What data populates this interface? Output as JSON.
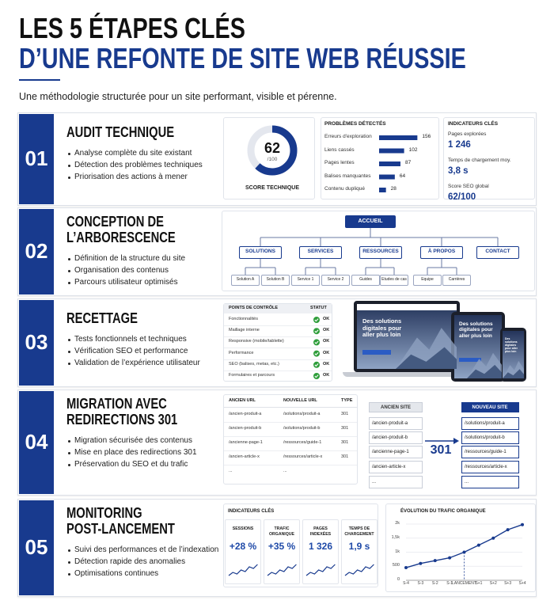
{
  "header": {
    "title_line1": "LES 5 ÉTAPES CLÉS",
    "title_line2": "D’UNE REFONTE DE SITE WEB RÉUSSIE",
    "subtitle": "Une méthodologie structurée pour un site performant, visible et pérenne."
  },
  "steps": [
    {
      "number": "01",
      "title": [
        "AUDIT TECHNIQUE"
      ],
      "bullets": [
        "Analyse complète du site existant",
        "Détection des problèmes techniques",
        "Priorisation des actions à mener"
      ],
      "score": {
        "value": 62,
        "max": {
          "value": 100,
          "label": "/100"
        },
        "label": "SCORE TECHNIQUE"
      },
      "problems": {
        "title": "PROBLÈMES DÉTECTÉS",
        "items": [
          {
            "label": "Erreurs d'exploration",
            "value": 156
          },
          {
            "label": "Liens cassés",
            "value": 102
          },
          {
            "label": "Pages lentes",
            "value": 87
          },
          {
            "label": "Balises manquantes",
            "value": 64
          },
          {
            "label": "Contenu dupliqué",
            "value": 28
          }
        ]
      },
      "indicators": {
        "title": "INDICATEURS CLÉS",
        "items": [
          {
            "label": "Pages explorées",
            "value": "1 246"
          },
          {
            "label": "Temps de chargement moy.",
            "value": "3,8 s"
          },
          {
            "label": "Score SEO global",
            "value": "62/100"
          }
        ]
      }
    },
    {
      "number": "02",
      "title": [
        "CONCEPTION DE",
        "L’ARBORESCENCE"
      ],
      "bullets": [
        "Définition de la structure du site",
        "Organisation des contenus",
        "Parcours utilisateur optimisés"
      ],
      "tree": {
        "root": "ACCUEIL",
        "branches": [
          {
            "label": "SOLUTIONS",
            "children": [
              "Solution A",
              "Solution B"
            ]
          },
          {
            "label": "SERVICES",
            "children": [
              "Service 1",
              "Service 2"
            ]
          },
          {
            "label": "RESSOURCES",
            "children": [
              "Guides",
              "Etudes de cas"
            ]
          },
          {
            "label": "À PROPOS",
            "children": [
              "Equipe",
              "Carrières"
            ]
          },
          {
            "label": "CONTACT",
            "children": []
          }
        ]
      }
    },
    {
      "number": "03",
      "title": [
        "RECETTAGE"
      ],
      "bullets": [
        "Tests fonctionnels et techniques",
        "Vérification SEO et performance",
        "Validation de l’expérience utilisateur"
      ],
      "checklist": {
        "headers": [
          "POINTS DE CONTRÔLE",
          "STATUT"
        ],
        "rows": [
          [
            "Fonctionnalités",
            "OK"
          ],
          [
            "Maillage interne",
            "OK"
          ],
          [
            "Responsive (mobile/tablette)",
            "OK"
          ],
          [
            "Performance",
            "OK"
          ],
          [
            "SEO (balises, metas, etc.)",
            "OK"
          ],
          [
            "Formulaires et parcours",
            "OK"
          ]
        ]
      },
      "mockup": {
        "headline": "Des solutions digitales pour aller plus loin"
      }
    },
    {
      "number": "04",
      "title": [
        "MIGRATION AVEC",
        "REDIRECTIONS 301"
      ],
      "bullets": [
        "Migration sécurisée des contenus",
        "Mise en place des redirections 301",
        "Préservation du SEO et du trafic"
      ],
      "redirects": {
        "headers": [
          "ANCIEN URL",
          "NOUVELLE URL",
          "TYPE"
        ],
        "rows": [
          [
            "/ancien-produit-a",
            "/solutions/produit-a",
            "301"
          ],
          [
            "/ancien-produit-b",
            "/solutions/produit-b",
            "301"
          ],
          [
            "/ancienne-page-1",
            "/ressources/guide-1",
            "301"
          ],
          [
            "/ancien-article-x",
            "/ressources/article-x",
            "301"
          ],
          [
            "...",
            "..."
          ]
        ]
      },
      "old_site": {
        "title": "ANCIEN SITE",
        "items": [
          "/ancien-produit-a",
          "/ancien-produit-b",
          "/ancienne-page-1",
          "/ancien-article-x",
          "..."
        ]
      },
      "redirect_code": "301",
      "new_site": {
        "title": "NOUVEAU SITE",
        "items": [
          "/solutions/produit-a",
          "/solutions/produit-b",
          "/ressources/guide-1",
          "/ressources/article-x",
          "..."
        ]
      }
    },
    {
      "number": "05",
      "title": [
        "MONITORING",
        "POST-LANCEMENT"
      ],
      "bullets": [
        "Suivi des performances et de l’indexation",
        "Détection rapide des anomalies",
        "Optimisations continues"
      ],
      "kpis": {
        "title": "INDICATEURS CLÉS",
        "items": [
          {
            "label": "SESSIONS",
            "value": "+28 %"
          },
          {
            "label": "TRAFIC ORGANIQUE",
            "value": "+35 %"
          },
          {
            "label": "PAGES INDEXÉES",
            "value": "1 326"
          },
          {
            "label": "TEMPS DE CHARGEMENT",
            "value": "1,9 s"
          }
        ]
      }
    }
  ],
  "chart_data": {
    "type": "line",
    "title": "ÉVOLUTION DU TRAFIC ORGANIQUE",
    "categories": [
      "S-4",
      "S-3",
      "S-2",
      "S-1",
      "LANCEMENT",
      "S+1",
      "S+2",
      "S+3",
      "S+4"
    ],
    "values": [
      450,
      600,
      700,
      800,
      1000,
      1250,
      1500,
      1800,
      1980
    ],
    "color": "#183a8e",
    "ylim": [
      0,
      2000
    ],
    "yticks": [
      0,
      500,
      {
        "value": 1000,
        "label": "1k"
      },
      {
        "value": 1500,
        "label": "1,5k"
      },
      {
        "value": 2000,
        "label": "2k"
      }
    ],
    "grid": true
  }
}
